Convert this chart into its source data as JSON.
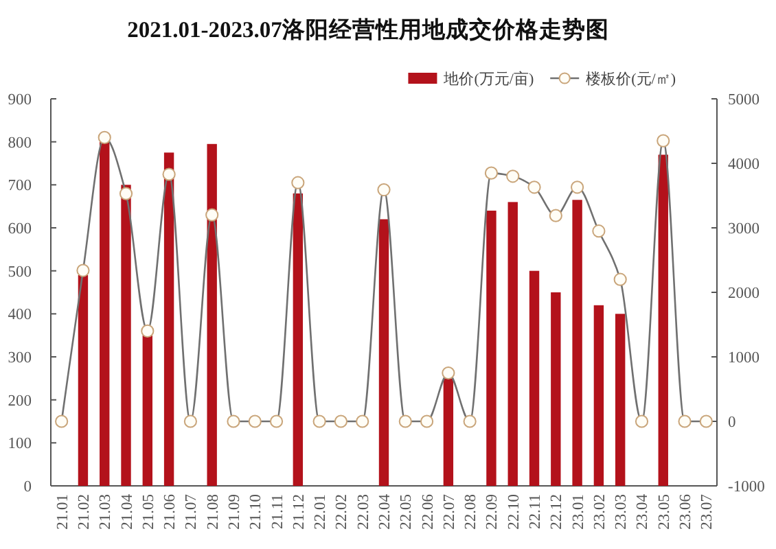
{
  "chart_data": {
    "type": "bar",
    "title": "2021.01-2023.07洛阳经营性用地成交价格走势图",
    "categories": [
      "21.01",
      "21.02",
      "21.03",
      "21.04",
      "21.05",
      "21.06",
      "21.07",
      "21.08",
      "21.09",
      "21.10",
      "21.11",
      "21.12",
      "22.01",
      "22.02",
      "22.03",
      "22.04",
      "22.05",
      "22.06",
      "22.07",
      "22.08",
      "22.09",
      "22.10",
      "22.11",
      "22.12",
      "23.01",
      "23.02",
      "23.03",
      "23.04",
      "23.05",
      "23.06",
      "23.07"
    ],
    "series": [
      {
        "name": "地价(万元/亩)",
        "color": "#b3121b",
        "values": [
          null,
          490,
          800,
          700,
          350,
          775,
          null,
          795,
          null,
          null,
          null,
          680,
          null,
          null,
          null,
          620,
          null,
          null,
          250,
          null,
          640,
          660,
          500,
          450,
          665,
          420,
          400,
          null,
          770,
          null,
          null
        ]
      },
      {
        "name": "楼板价(元/㎡)",
        "type": "line",
        "axis": "y2",
        "color": "#707070",
        "values": [
          0,
          2340,
          4400,
          3530,
          1400,
          3830,
          0,
          3200,
          0,
          0,
          0,
          3700,
          0,
          0,
          0,
          3590,
          0,
          0,
          750,
          0,
          3850,
          3800,
          3630,
          3190,
          3630,
          2950,
          2200,
          0,
          4350,
          0,
          0
        ]
      }
    ],
    "ylim": [
      0,
      900
    ],
    "yticks": [
      0,
      100,
      200,
      300,
      400,
      500,
      600,
      700,
      800,
      900
    ],
    "y2lim": [
      -1000,
      5000
    ],
    "y2ticks": [
      -1000,
      0,
      1000,
      2000,
      3000,
      4000,
      5000
    ],
    "legend": "top right",
    "marker": "circle"
  }
}
